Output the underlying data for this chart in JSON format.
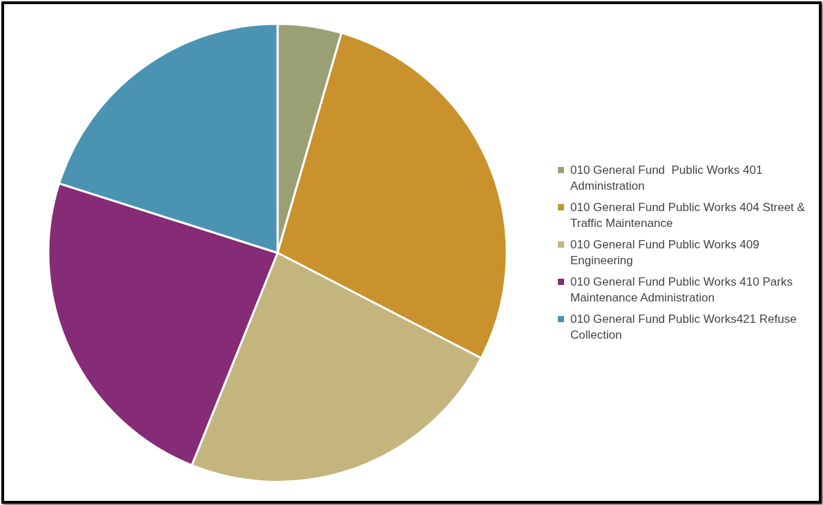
{
  "chart_data": {
    "type": "pie",
    "categories": [
      "010 General Fund  Public Works 401 Administration",
      "010 General Fund Public Works 404 Street & Traffic Maintenance",
      "010 General Fund Public Works 409 Engineering",
      "010 General Fund Public Works 410 Parks Maintenance Administration",
      "010 General Fund Public Works421 Refuse Collection"
    ],
    "values": [
      4.5,
      28.1,
      23.5,
      23.8,
      20.1
    ],
    "colors": [
      "#9aa074",
      "#c9922c",
      "#c4b47e",
      "#862b75",
      "#4a93b3"
    ],
    "legend": "right"
  }
}
